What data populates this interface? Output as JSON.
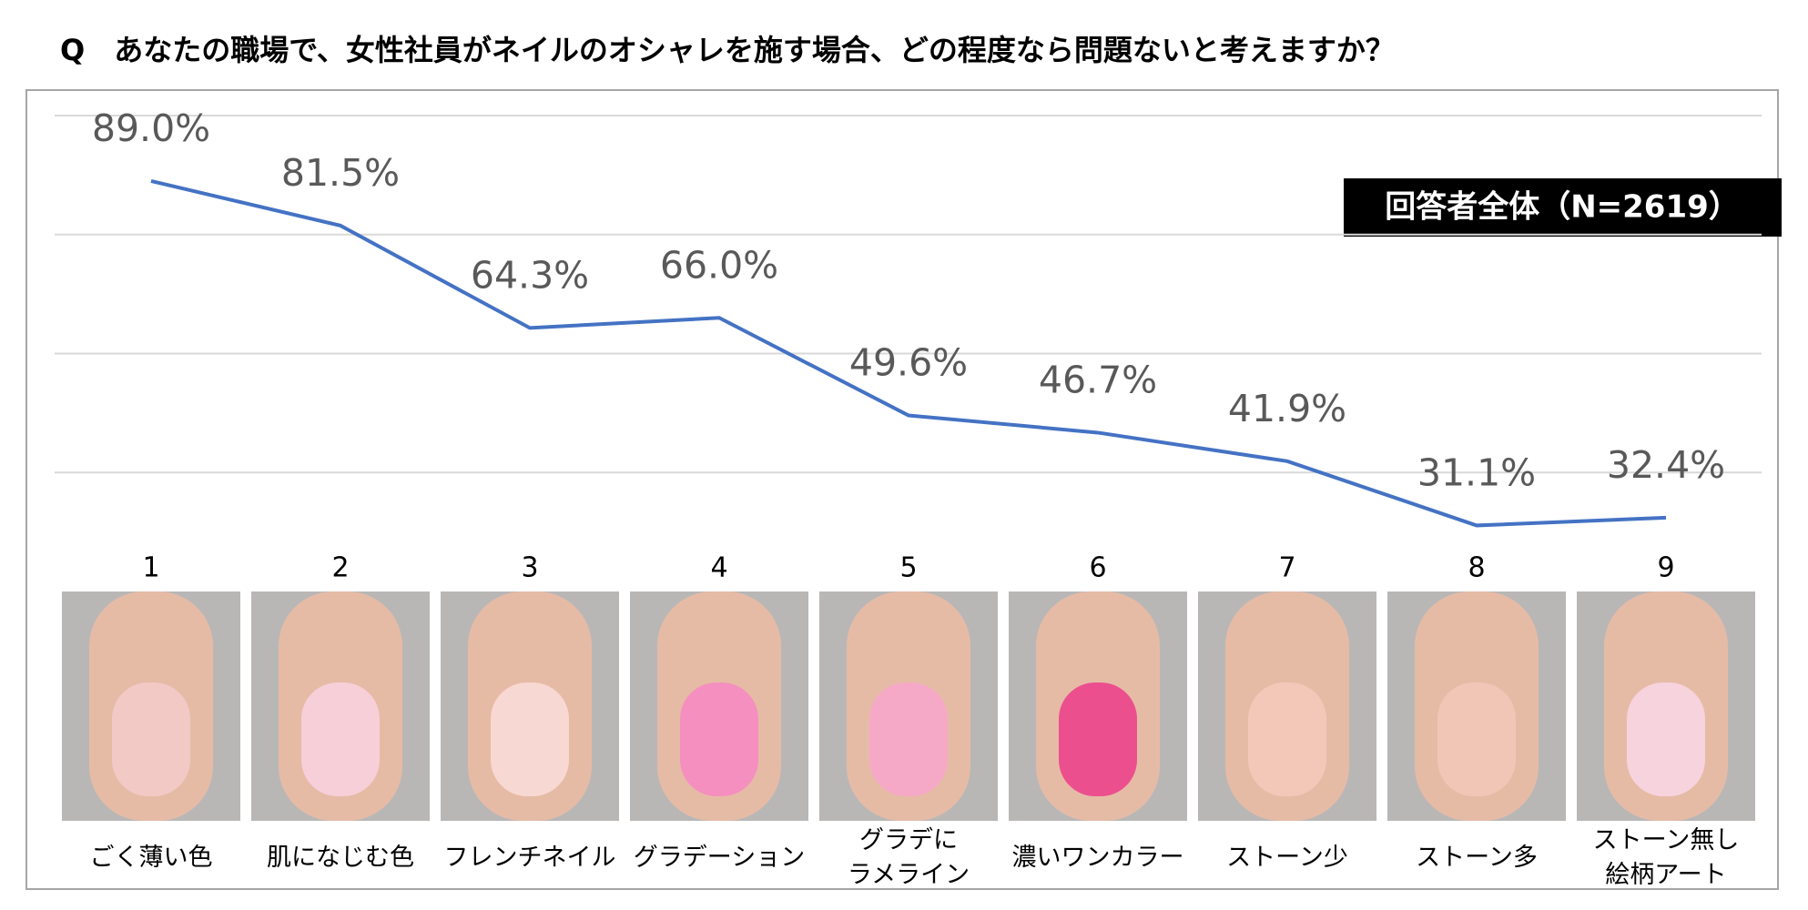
{
  "chart_data": {
    "type": "line",
    "title": "Q　あなたの職場で、女性社員がネイルのオシャレを施す場合、どの程度なら問題ないと考えますか？",
    "annotation": "回答者全体（N=2619）",
    "categories": [
      "1",
      "2",
      "3",
      "4",
      "5",
      "6",
      "7",
      "8",
      "9"
    ],
    "category_names": [
      "ごく薄い色",
      "肌になじむ色",
      "フレンチネイル",
      "グラデーション",
      "グラデに\nラメライン",
      "濃いワンカラー",
      "ストーン少",
      "ストーン多",
      "ストーン無し\n絵柄アート"
    ],
    "series": [
      {
        "name": "回答者全体",
        "color": "#4472c4",
        "values": [
          89.0,
          81.5,
          64.3,
          66.0,
          49.6,
          46.7,
          41.9,
          31.1,
          32.4
        ],
        "value_labels": [
          "89.0%",
          "81.5%",
          "64.3%",
          "66.0%",
          "49.6%",
          "46.7%",
          "41.9%",
          "31.1%",
          "32.4%"
        ]
      }
    ],
    "ylim": [
      20,
      100
    ],
    "yticks": [
      40,
      60,
      80,
      100
    ],
    "grid": true
  }
}
